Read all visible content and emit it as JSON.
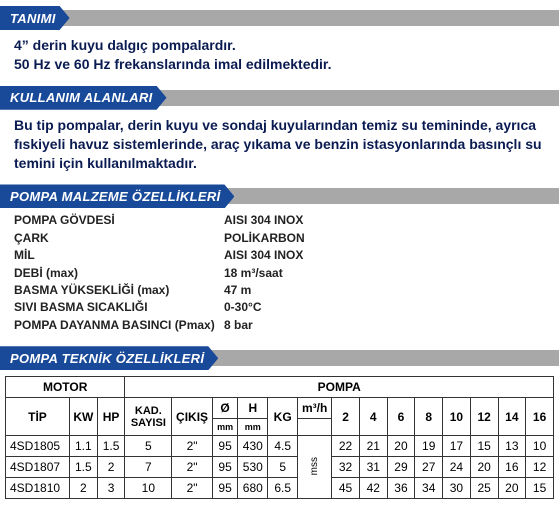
{
  "sections": {
    "tanimi": {
      "title": "TANIMI",
      "text": "4” derin kuyu dalgıç pompalardır.\n50 Hz ve 60 Hz frekanslarında imal edilmektedir."
    },
    "kullanim": {
      "title": "KULLANIM ALANLARI",
      "text": "Bu tip pompalar, derin kuyu ve sondaj kuyularından temiz su temininde, ayrıca fıskiyeli havuz sistemlerinde, araç yıkama ve benzin istasyonlarında basınçlı su temini için kullanılmaktadır."
    },
    "malzeme": {
      "title": "POMPA MALZEME ÖZELLİKLERİ",
      "rows": [
        {
          "label": "POMPA GÖVDESİ",
          "value": "AISI 304 INOX"
        },
        {
          "label": "ÇARK",
          "value": "POLİKARBON"
        },
        {
          "label": "MİL",
          "value": "AISI 304 INOX"
        },
        {
          "label": "DEBİ (max)",
          "value": "18 m³/saat"
        },
        {
          "label": "BASMA YÜKSEKLİĞİ (max)",
          "value": "47 m"
        },
        {
          "label": "SIVI BASMA SICAKLIĞI",
          "value": "0-30°C"
        },
        {
          "label": "POMPA DAYANMA BASINCI (Pmax)",
          "value": "8 bar"
        }
      ]
    },
    "teknik": {
      "title": "POMPA TEKNİK ÖZELLİKLERİ",
      "table": {
        "group_headers": {
          "motor": "MOTOR",
          "pompa": "POMPA"
        },
        "cols": {
          "tip": "TİP",
          "kw": "KW",
          "hp": "HP",
          "kad": "KAD. SAYISI",
          "cikis": "ÇIKIŞ",
          "dia": "Ø",
          "h": "H",
          "kg": "KG",
          "m3h": "m³/h",
          "unit_mm": "mm",
          "rot_unit": "mss"
        },
        "flow_headers": [
          "2",
          "4",
          "6",
          "8",
          "10",
          "12",
          "14",
          "16"
        ],
        "rows": [
          {
            "tip": "4SD1805",
            "kw": "1.1",
            "hp": "1.5",
            "kad": "5",
            "cikis": "2\"",
            "dia": "95",
            "h": "430",
            "kg": "4.5",
            "cells": [
              "22",
              "21",
              "20",
              "19",
              "17",
              "15",
              "13",
              "10"
            ]
          },
          {
            "tip": "4SD1807",
            "kw": "1.5",
            "hp": "2",
            "kad": "7",
            "cikis": "2\"",
            "dia": "95",
            "h": "530",
            "kg": "5",
            "cells": [
              "32",
              "31",
              "29",
              "27",
              "24",
              "20",
              "16",
              "12"
            ]
          },
          {
            "tip": "4SD1810",
            "kw": "2",
            "hp": "3",
            "kad": "10",
            "cikis": "2\"",
            "dia": "95",
            "h": "680",
            "kg": "6.5",
            "cells": [
              "45",
              "42",
              "36",
              "34",
              "30",
              "25",
              "20",
              "15"
            ]
          }
        ]
      },
      "styling": {
        "header_bg": "#194a9a",
        "header_text": "#ffffff",
        "strip_bg": "#a8a8a8",
        "body_text_color": "#0a1b52",
        "border_color": "#333333",
        "font_family": "Arial",
        "base_font_size_pt": 10,
        "title_font_size_pt": 12
      }
    }
  }
}
